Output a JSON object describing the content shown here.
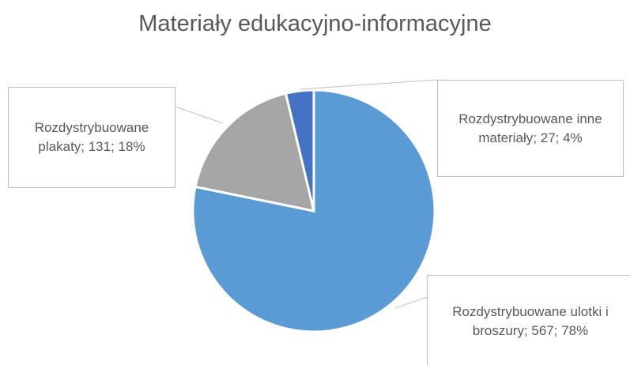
{
  "chart_data": {
    "type": "pie",
    "title": "Materiały edukacyjno-informacyjne",
    "values": [
      567,
      131,
      27
    ],
    "value_labels": [
      "Rozdystrybuowane ulotki i broszury; 567; 78%",
      "Rozdystrybuowane plakaty; 131; 18%",
      "Rozdystrybuowane inne materiały; 27; 4%"
    ],
    "colors": [
      "#5b9bd5",
      "#a5a5a5",
      "#4472c4"
    ]
  }
}
